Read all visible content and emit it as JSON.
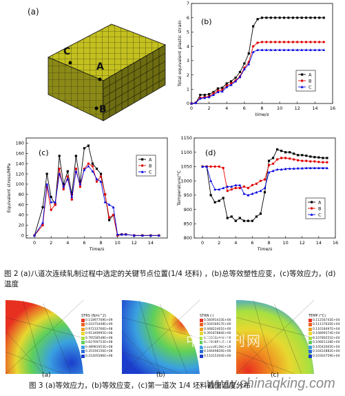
{
  "figure2": {
    "panel_a": {
      "label": "(a)",
      "nodes": [
        "C",
        "A",
        "B"
      ]
    },
    "caption": "图 2  (a)八道次连续轧制过程中选定的关键节点位置(1/4 坯料) ，(b)总等效塑性应变，(c)等效应力，(d)温度"
  },
  "figure3": {
    "caption": "图 3 (a)等效应力，(b)等效应变，(c)第一道次 1/4 坯料截面温度分布",
    "panels": [
      {
        "label": "(a)",
        "legend_title": "STRS (N/m^2)",
        "legend_values": [
          "0.11897709E+09",
          "0.10375448E+09",
          "0.97233766E+08",
          "0.91349995E+08",
          "0.76558548E+08",
          "0.62769753E+08",
          "0.48981953E+08",
          "0.35194156E+08",
          "0.21405586E+08"
        ]
      },
      {
        "label": "(b)",
        "legend_title": "STRN (-)",
        "legend_values": [
          "0.56091433E+00",
          "0.50456917E+00",
          "0.44822401E+00",
          "0.39187884E+00",
          "0.33553368E+00",
          "0.27918852E+00",
          "0.22284336E+00",
          "0.16649820E+00",
          "0.11015304E+00"
        ]
      },
      {
        "label": "(c)",
        "legend_title": "TEMP (°C)",
        "legend_values": [
          "0.11256743E+04",
          "0.11137620E+04",
          "0.11018497E+04",
          "0.10899374E+04",
          "0.10780251E+04",
          "0.10661128E+04",
          "0.10542005E+04",
          "0.10422882E+04",
          "0.10303759E+04"
        ]
      }
    ]
  },
  "watermark": {
    "text1": "中国期刊网",
    "text2": "www.chinaqking.com"
  },
  "chart_data": [
    {
      "type": "line",
      "panel_label": "(b)",
      "xlabel": "time/s",
      "ylabel": "Total equivalent plastic strain",
      "xlim": [
        0,
        16
      ],
      "ylim": [
        0,
        7
      ],
      "xticks": [
        0,
        2,
        4,
        6,
        8,
        10,
        12,
        14,
        16
      ],
      "yticks": [
        0,
        1,
        2,
        3,
        4,
        5,
        6,
        7
      ],
      "legend": "right",
      "series": [
        {
          "name": "A",
          "color": "#000000",
          "marker": "square",
          "x": [
            0,
            0.5,
            1,
            1.5,
            2,
            2.5,
            3,
            3.5,
            4,
            4.5,
            5,
            5.5,
            6,
            6.5,
            7,
            7.5,
            8,
            8.5,
            9,
            9.5,
            10,
            10.5,
            11,
            11.5,
            12,
            12.5,
            13,
            13.5,
            14,
            14.5,
            15
          ],
          "y": [
            0,
            0.05,
            0.6,
            0.6,
            0.65,
            0.8,
            1.05,
            1.1,
            1.4,
            1.55,
            1.8,
            2.2,
            2.8,
            3.5,
            5.4,
            5.9,
            6.0,
            6.0,
            6.0,
            6.0,
            6.0,
            6.0,
            6.0,
            6.0,
            6.0,
            6.0,
            6.0,
            6.0,
            6.0,
            6.0,
            6.0
          ]
        },
        {
          "name": "B",
          "color": "#e00000",
          "marker": "circle",
          "x": [
            0,
            0.5,
            1,
            1.5,
            2,
            2.5,
            3,
            3.5,
            4,
            4.5,
            5,
            5.5,
            6,
            6.5,
            7,
            7.5,
            8,
            8.5,
            9,
            9.5,
            10,
            10.5,
            11,
            11.5,
            12,
            12.5,
            13,
            13.5,
            14,
            14.5,
            15
          ],
          "y": [
            0,
            0.05,
            0.4,
            0.45,
            0.5,
            0.7,
            0.9,
            0.95,
            1.25,
            1.4,
            1.6,
            1.9,
            2.5,
            2.9,
            4.0,
            4.25,
            4.3,
            4.3,
            4.3,
            4.3,
            4.3,
            4.3,
            4.3,
            4.3,
            4.3,
            4.3,
            4.3,
            4.3,
            4.3,
            4.3,
            4.3
          ]
        },
        {
          "name": "C",
          "color": "#0000e0",
          "marker": "triangle",
          "x": [
            0,
            0.5,
            1,
            1.5,
            2,
            2.5,
            3,
            3.5,
            4,
            4.5,
            5,
            5.5,
            6,
            6.5,
            7,
            7.5,
            8,
            8.5,
            9,
            9.5,
            10,
            10.5,
            11,
            11.5,
            12,
            12.5,
            13,
            13.5,
            14,
            14.5,
            15
          ],
          "y": [
            0,
            0.05,
            0.35,
            0.4,
            0.45,
            0.6,
            0.8,
            0.85,
            1.15,
            1.3,
            1.55,
            1.85,
            2.4,
            2.75,
            3.6,
            3.75,
            3.75,
            3.75,
            3.75,
            3.75,
            3.75,
            3.75,
            3.75,
            3.75,
            3.75,
            3.75,
            3.75,
            3.75,
            3.75,
            3.75,
            3.75
          ]
        }
      ]
    },
    {
      "type": "line",
      "panel_label": "(c)",
      "xlabel": "Time/s",
      "ylabel": "Equivalent stress/MPa",
      "xlim": [
        -1,
        16
      ],
      "ylim": [
        -5,
        190
      ],
      "xticks": [
        0,
        2,
        4,
        6,
        8,
        10,
        12,
        14
      ],
      "yticks": [
        0,
        20,
        40,
        60,
        80,
        100,
        120,
        140,
        160,
        180
      ],
      "legend": "top-right",
      "series": [
        {
          "name": "A",
          "color": "#000000",
          "marker": "square",
          "x": [
            0,
            1,
            1.5,
            2,
            2.5,
            3,
            3.5,
            4,
            4.5,
            5,
            5.5,
            6,
            6.5,
            7,
            7.5,
            8,
            8.5,
            9,
            9.5,
            10,
            10.5,
            11,
            12,
            13,
            14,
            15
          ],
          "y": [
            0,
            55,
            120,
            75,
            60,
            155,
            100,
            125,
            80,
            155,
            105,
            170,
            175,
            140,
            130,
            120,
            80,
            30,
            40,
            0,
            2,
            2,
            0,
            0,
            0,
            0
          ]
        },
        {
          "name": "B",
          "color": "#e00000",
          "marker": "circle",
          "x": [
            0,
            1,
            1.5,
            2,
            2.5,
            3,
            3.5,
            4,
            4.5,
            5,
            5.5,
            6,
            6.5,
            7,
            7.5,
            8,
            8.5,
            9,
            9.5,
            10,
            10.5,
            11,
            12,
            13,
            14,
            15
          ],
          "y": [
            0,
            20,
            95,
            50,
            60,
            130,
            90,
            115,
            70,
            130,
            95,
            130,
            140,
            135,
            105,
            115,
            80,
            35,
            40,
            0,
            2,
            2,
            0,
            0,
            0,
            0
          ]
        },
        {
          "name": "C",
          "color": "#0000e0",
          "marker": "triangle",
          "x": [
            0,
            1,
            1.5,
            2,
            2.5,
            3,
            3.5,
            4,
            4.5,
            5,
            5.5,
            6,
            6.5,
            7,
            7.5,
            8,
            8.5,
            9,
            9.5,
            10,
            10.5,
            11,
            12,
            13,
            14,
            15
          ],
          "y": [
            0,
            25,
            100,
            65,
            65,
            120,
            95,
            110,
            75,
            125,
            100,
            128,
            135,
            125,
            110,
            105,
            65,
            60,
            55,
            2,
            2,
            2,
            0,
            0,
            0,
            0
          ]
        }
      ]
    },
    {
      "type": "line",
      "panel_label": "(d)",
      "xlabel": "Time/s",
      "ylabel": "Temperature/°C",
      "xlim": [
        -1,
        16
      ],
      "ylim": [
        800,
        1150
      ],
      "xticks": [
        0,
        2,
        4,
        6,
        8,
        10,
        12,
        14,
        16
      ],
      "yticks": [
        800,
        850,
        900,
        950,
        1000,
        1050,
        1100,
        1150
      ],
      "legend": "bottom-right",
      "series": [
        {
          "name": "A",
          "color": "#000000",
          "marker": "square",
          "x": [
            0,
            0.5,
            1,
            1.5,
            2,
            2.5,
            3,
            3.5,
            4,
            4.5,
            5,
            5.5,
            6,
            6.5,
            7,
            7.5,
            8,
            8.5,
            9,
            9.5,
            10,
            10.5,
            11,
            11.5,
            12,
            12.5,
            13,
            13.5,
            14,
            14.5,
            15
          ],
          "y": [
            1050,
            1050,
            950,
            925,
            930,
            940,
            870,
            875,
            860,
            870,
            860,
            860,
            860,
            875,
            885,
            960,
            1070,
            1080,
            1110,
            1105,
            1100,
            1100,
            1095,
            1090,
            1090,
            1088,
            1085,
            1083,
            1082,
            1080,
            1080
          ]
        },
        {
          "name": "B",
          "color": "#e00000",
          "marker": "circle",
          "x": [
            0,
            0.5,
            1,
            1.5,
            2,
            2.5,
            3,
            3.5,
            4,
            4.5,
            5,
            5.5,
            6,
            6.5,
            7,
            7.5,
            8,
            8.5,
            9,
            9.5,
            10,
            10.5,
            11,
            11.5,
            12,
            12.5,
            13,
            13.5,
            14,
            14.5,
            15
          ],
          "y": [
            1050,
            1050,
            1050,
            1050,
            1050,
            1045,
            965,
            970,
            975,
            975,
            980,
            975,
            985,
            990,
            1000,
            1005,
            1055,
            1060,
            1075,
            1080,
            1080,
            1078,
            1075,
            1072,
            1070,
            1070,
            1068,
            1068,
            1066,
            1065,
            1065
          ]
        },
        {
          "name": "C",
          "color": "#0000e0",
          "marker": "triangle",
          "x": [
            0,
            0.5,
            1,
            1.5,
            2,
            2.5,
            3,
            3.5,
            4,
            4.5,
            5,
            5.5,
            6,
            6.5,
            7,
            7.5,
            8,
            8.5,
            9,
            9.5,
            10,
            10.5,
            11,
            11.5,
            12,
            12.5,
            13,
            13.5,
            14,
            14.5,
            15
          ],
          "y": [
            1050,
            1050,
            1000,
            970,
            970,
            975,
            980,
            980,
            985,
            985,
            955,
            950,
            955,
            960,
            965,
            975,
            1030,
            1035,
            1040,
            1040,
            1042,
            1043,
            1043,
            1044,
            1044,
            1045,
            1045,
            1045,
            1045,
            1045,
            1045
          ]
        }
      ]
    }
  ]
}
